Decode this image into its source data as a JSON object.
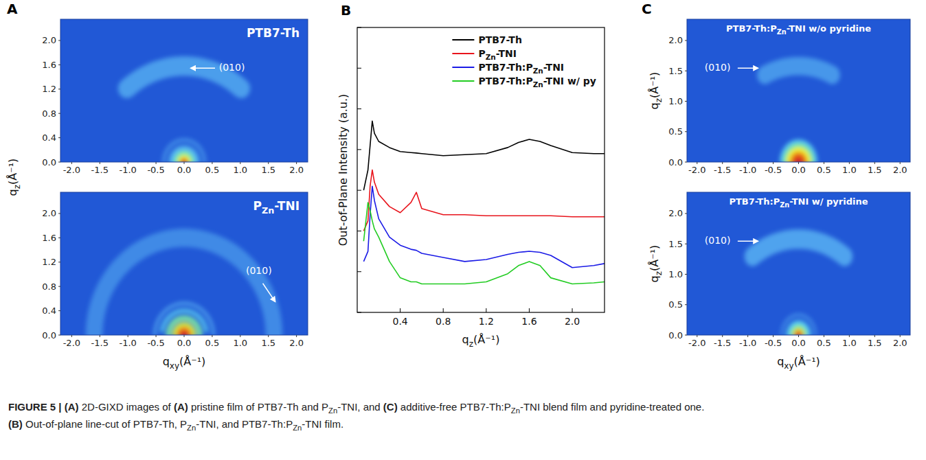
{
  "chart_data": [
    {
      "type": "image",
      "panel": "A",
      "title": "PTB7-Th",
      "ylabel": "qz(Å⁻¹)",
      "xlim": [
        -2.2,
        2.2
      ],
      "ylim": [
        0,
        2.35
      ],
      "xticks": [
        {
          "value": -2.0,
          "label": "-2.0"
        },
        -1.5,
        {
          "value": -1.0,
          "label": "-1.0"
        },
        -0.5,
        {
          "value": 0,
          "label": "0.0"
        },
        0.5,
        {
          "value": 1,
          "label": "1.0"
        },
        1.5,
        {
          "value": 2,
          "label": "2.0"
        }
      ],
      "yticks": [
        {
          "value": 0,
          "label": "0.0"
        },
        0.4,
        0.8,
        1.2,
        1.6,
        {
          "value": 2,
          "label": "2.0"
        }
      ],
      "rings": [
        {
          "q": 1.58,
          "width": 0.32,
          "from": 50,
          "to": 130,
          "intensity": 0.28
        },
        {
          "q": 0.36,
          "width": 0.06,
          "from": 0,
          "to": 180,
          "intensity": 0.22
        },
        {
          "q": 0.22,
          "width": 0.1,
          "from": 0,
          "to": 180,
          "intensity": 0.35
        },
        {
          "q": 0.14,
          "width": 0.07,
          "from": 0,
          "to": 180,
          "intensity": 0.55
        },
        {
          "q": 0.08,
          "width": 0.06,
          "from": 0,
          "to": 180,
          "intensity": 0.75
        },
        {
          "q": 0.03,
          "width": 0.06,
          "from": 0,
          "to": 180,
          "intensity": 0.95
        }
      ],
      "annotations": [
        {
          "text": "(010)",
          "x": 0.62,
          "y": 1.5,
          "arrow": [
            0.55,
            1.545,
            0.12,
            1.545
          ]
        }
      ]
    },
    {
      "type": "image",
      "title": "PZn-TNI",
      "xlabel": "qxy(Å⁻¹)",
      "xlim": [
        -2.2,
        2.2
      ],
      "ylim": [
        0,
        2.35
      ],
      "xticks": [
        {
          "value": -2.0,
          "label": "-2.0"
        },
        -1.5,
        {
          "value": -1.0,
          "label": "-1.0"
        },
        -0.5,
        {
          "value": 0,
          "label": "0.0"
        },
        0.5,
        {
          "value": 1,
          "label": "1.0"
        },
        1.5,
        {
          "value": 2,
          "label": "2.0"
        }
      ],
      "yticks": [
        {
          "value": 0,
          "label": "0.0"
        },
        0.4,
        0.8,
        1.2,
        1.6,
        {
          "value": 2,
          "label": "2.0"
        }
      ],
      "rings": [
        {
          "q": 1.6,
          "width": 0.3,
          "from": 0,
          "to": 180,
          "intensity": 0.2
        },
        {
          "q": 0.52,
          "width": 0.05,
          "from": 0,
          "to": 180,
          "intensity": 0.3
        },
        {
          "q": 0.4,
          "width": 0.06,
          "from": 10,
          "to": 170,
          "intensity": 0.4
        },
        {
          "q": 0.28,
          "width": 0.08,
          "from": 0,
          "to": 180,
          "intensity": 0.55
        },
        {
          "q": 0.18,
          "width": 0.07,
          "from": 0,
          "to": 180,
          "intensity": 0.7
        },
        {
          "q": 0.11,
          "width": 0.07,
          "from": 0,
          "to": 180,
          "intensity": 0.85
        },
        {
          "q": 0.04,
          "width": 0.08,
          "from": 0,
          "to": 180,
          "intensity": 1.0
        }
      ],
      "annotations": [
        {
          "text": "(010)",
          "x": 1.1,
          "y": 1.0,
          "arrow": [
            1.4,
            0.85,
            1.62,
            0.55
          ]
        }
      ]
    },
    {
      "type": "line",
      "panel": "B",
      "xlabel": "qz(Å⁻¹)",
      "ylabel": "Out-of-Plane Intensity (a.u.)",
      "x": [
        0.06,
        0.1,
        0.12,
        0.14,
        0.16,
        0.2,
        0.3,
        0.4,
        0.5,
        0.55,
        0.6,
        0.8,
        1.0,
        1.2,
        1.4,
        1.5,
        1.6,
        1.7,
        1.8,
        2.0,
        2.2,
        2.3
      ],
      "series": [
        {
          "name": "PTB7-Th",
          "color": "#000000",
          "values": [
            60,
            70,
            82,
            94,
            88,
            84,
            81,
            79,
            78.5,
            78.3,
            78,
            77,
            77.5,
            78,
            81,
            83.5,
            85,
            84,
            82,
            78.5,
            78,
            78
          ]
        },
        {
          "name": "PZn-TNI",
          "color": "#e8141c",
          "values": [
            40,
            45,
            62,
            70,
            64,
            58,
            52,
            49,
            54,
            59,
            51,
            48,
            48,
            47.5,
            47.5,
            47.5,
            47.5,
            47.5,
            47.5,
            47,
            47,
            47
          ]
        },
        {
          "name": "PTB7-Th:PZn-TNI",
          "color": "#1a1ae6",
          "values": [
            25,
            30,
            48,
            62,
            55,
            46,
            37,
            33,
            31,
            30.5,
            29,
            27,
            25,
            26,
            28.5,
            29.5,
            30,
            29.5,
            28,
            22,
            23,
            24
          ]
        },
        {
          "name": "PTB7-Th:PZn-TNI w/ py",
          "color": "#22cc22",
          "values": [
            35,
            54,
            50,
            45,
            41,
            37,
            25,
            17,
            15,
            15,
            14,
            14,
            14,
            15,
            19,
            23,
            25,
            23,
            17,
            14,
            14.5,
            15
          ]
        }
      ],
      "xlim": [
        0,
        2.3
      ],
      "ylim": [
        0,
        140
      ],
      "xticks": [
        0.4,
        0.8,
        1.2,
        1.6,
        {
          "value": 2,
          "label": "2.0"
        }
      ],
      "yticks": [
        0,
        20,
        40,
        60,
        80,
        100,
        120,
        140
      ],
      "tick_labels": "x",
      "legend": "upper right"
    },
    {
      "type": "image",
      "panel": "C",
      "title": "PTB7-Th:PZn-TNI w/o pyridine",
      "ylabel": "qz(Å⁻¹)",
      "xlim": [
        -2.2,
        2.2
      ],
      "ylim": [
        0,
        2.35
      ],
      "xticks": [
        {
          "value": -2.0,
          "label": "-2.0"
        },
        -1.5,
        {
          "value": -1.0,
          "label": "-1.0"
        },
        -0.5,
        {
          "value": 0,
          "label": "0.0"
        },
        0.5,
        {
          "value": 1,
          "label": "1.0"
        },
        1.5,
        {
          "value": 2,
          "label": "2.0"
        }
      ],
      "yticks": [
        {
          "value": 0,
          "label": "0.0"
        },
        0.5,
        {
          "value": 1,
          "label": "1.0"
        },
        1.5,
        {
          "value": 2,
          "label": "2.0"
        }
      ],
      "rings": [
        {
          "q": 1.58,
          "width": 0.3,
          "from": 65,
          "to": 115,
          "intensity": 0.25
        },
        {
          "q": 0.34,
          "width": 0.06,
          "from": 0,
          "to": 180,
          "intensity": 0.4
        },
        {
          "q": 0.27,
          "width": 0.07,
          "from": 0,
          "to": 180,
          "intensity": 0.55
        },
        {
          "q": 0.2,
          "width": 0.08,
          "from": 0,
          "to": 180,
          "intensity": 0.75
        },
        {
          "q": 0.12,
          "width": 0.08,
          "from": 0,
          "to": 180,
          "intensity": 0.9
        },
        {
          "q": 0.04,
          "width": 0.08,
          "from": 0,
          "to": 180,
          "intensity": 1.0
        }
      ],
      "annotations": [
        {
          "text": "(010)",
          "x": -1.85,
          "y": 1.5,
          "arrow": [
            -1.2,
            1.545,
            -0.8,
            1.545
          ]
        }
      ]
    },
    {
      "type": "image",
      "title": "PTB7-Th:PZn-TNI w/ pyridine",
      "ylabel": "qz(Å⁻¹)",
      "xlabel": "qxy(Å⁻¹)",
      "xlim": [
        -2.2,
        2.2
      ],
      "ylim": [
        0,
        2.35
      ],
      "xticks": [
        {
          "value": -2.0,
          "label": "-2.0"
        },
        -1.5,
        {
          "value": -1.0,
          "label": "-1.0"
        },
        -0.5,
        {
          "value": 0,
          "label": "0.0"
        },
        0.5,
        {
          "value": 1,
          "label": "1.0"
        },
        1.5,
        {
          "value": 2,
          "label": "2.0"
        }
      ],
      "yticks": [
        {
          "value": 0,
          "label": "0.0"
        },
        0.5,
        {
          "value": 1,
          "label": "1.0"
        },
        1.5,
        {
          "value": 2,
          "label": "2.0"
        }
      ],
      "rings": [
        {
          "q": 1.58,
          "width": 0.32,
          "from": 55,
          "to": 125,
          "intensity": 0.3
        },
        {
          "q": 0.33,
          "width": 0.05,
          "from": 0,
          "to": 180,
          "intensity": 0.22
        },
        {
          "q": 0.2,
          "width": 0.08,
          "from": 0,
          "to": 180,
          "intensity": 0.4
        },
        {
          "q": 0.13,
          "width": 0.06,
          "from": 0,
          "to": 180,
          "intensity": 0.6
        },
        {
          "q": 0.08,
          "width": 0.05,
          "from": 0,
          "to": 180,
          "intensity": 0.8
        },
        {
          "q": 0.03,
          "width": 0.06,
          "from": 0,
          "to": 180,
          "intensity": 0.95
        }
      ],
      "annotations": [
        {
          "text": "(010)",
          "x": -1.85,
          "y": 1.5,
          "arrow": [
            -1.2,
            1.545,
            -0.8,
            1.545
          ]
        }
      ]
    }
  ],
  "caption": [
    "FIGURE 5 | (A) 2D-GIXD images of (A) pristine film of PTB7-Th and PZn-TNI, and (C) additive-free PTB7-Th:PZn-TNI blend film and pyridine-treated one.",
    "(B) Out-of-plane line-cut of PTB7-Th, PZn-TNI, and PTB7-Th:PZn-TNI film."
  ]
}
